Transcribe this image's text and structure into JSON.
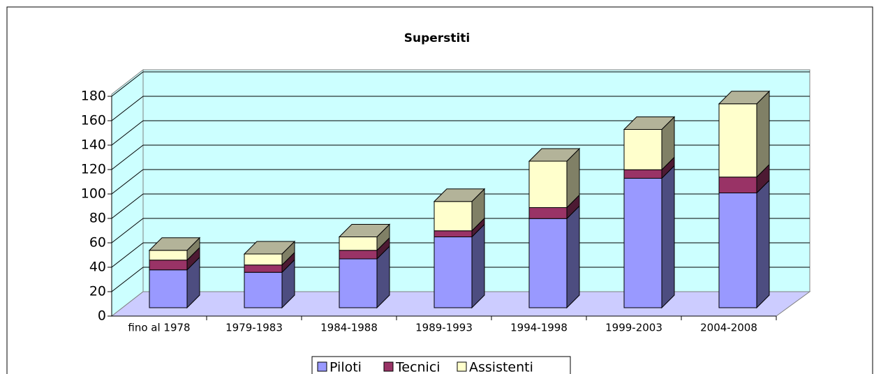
{
  "chart_data": {
    "type": "bar3d_stacked",
    "title": "Superstiti",
    "categories": [
      "fino al 1978",
      "1979-1983",
      "1984-1988",
      "1989-1993",
      "1994-1998",
      "1999-2003",
      "2004-2008"
    ],
    "series": [
      {
        "name": "Piloti",
        "color": "#9999ff",
        "values": [
          31,
          29,
          40,
          58,
          73,
          106,
          94
        ]
      },
      {
        "name": "Tecnici",
        "color": "#993366",
        "values": [
          8,
          6,
          7,
          5,
          9,
          7,
          13
        ]
      },
      {
        "name": "Assistenti",
        "color": "#ffffcc",
        "values": [
          8,
          9,
          11,
          24,
          38,
          33,
          60
        ]
      }
    ],
    "ylim": [
      0,
      180
    ],
    "yticks": [
      0,
      20,
      40,
      60,
      80,
      100,
      120,
      140,
      160,
      180
    ],
    "grid": true,
    "legend": "bottom"
  }
}
